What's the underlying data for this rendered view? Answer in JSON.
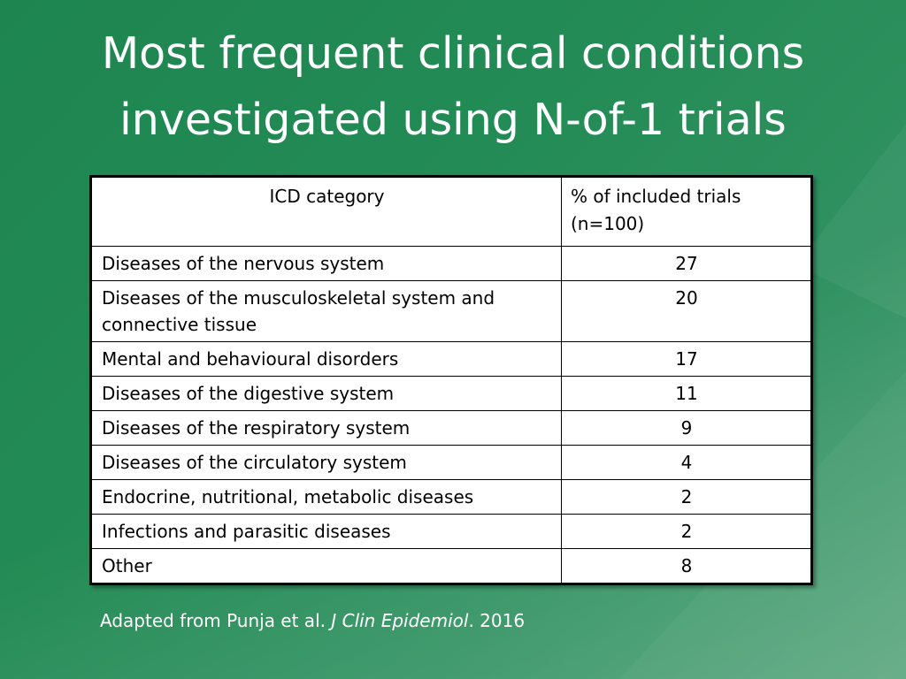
{
  "slide": {
    "title_lines": [
      "Most frequent clinical conditions",
      "investigated using N-of-1 trials"
    ],
    "background_color": "#238b55"
  },
  "table": {
    "headers": [
      "ICD category",
      "% of included trials (n=100)"
    ],
    "header_2_lines": [
      "% of included trials",
      "(n=100)"
    ],
    "rows": [
      {
        "category": "Diseases of the nervous system",
        "percent": "27"
      },
      {
        "category": "Diseases of the musculoskeletal system and connective tissue",
        "percent": "20"
      },
      {
        "category": "Mental and behavioural disorders",
        "percent": "17"
      },
      {
        "category": "Diseases of the digestive system",
        "percent": "11"
      },
      {
        "category": "Diseases of the respiratory system",
        "percent": "9"
      },
      {
        "category": "Diseases of the circulatory system",
        "percent": "4"
      },
      {
        "category": "Endocrine, nutritional, metabolic diseases",
        "percent": "2"
      },
      {
        "category": "Infections and parasitic diseases",
        "percent": "2"
      },
      {
        "category": "Other",
        "percent": "8"
      }
    ]
  },
  "caption": {
    "prefix": "Adapted from Punja et al. ",
    "journal": "J Clin Epidemiol",
    "suffix": ". 2016"
  }
}
